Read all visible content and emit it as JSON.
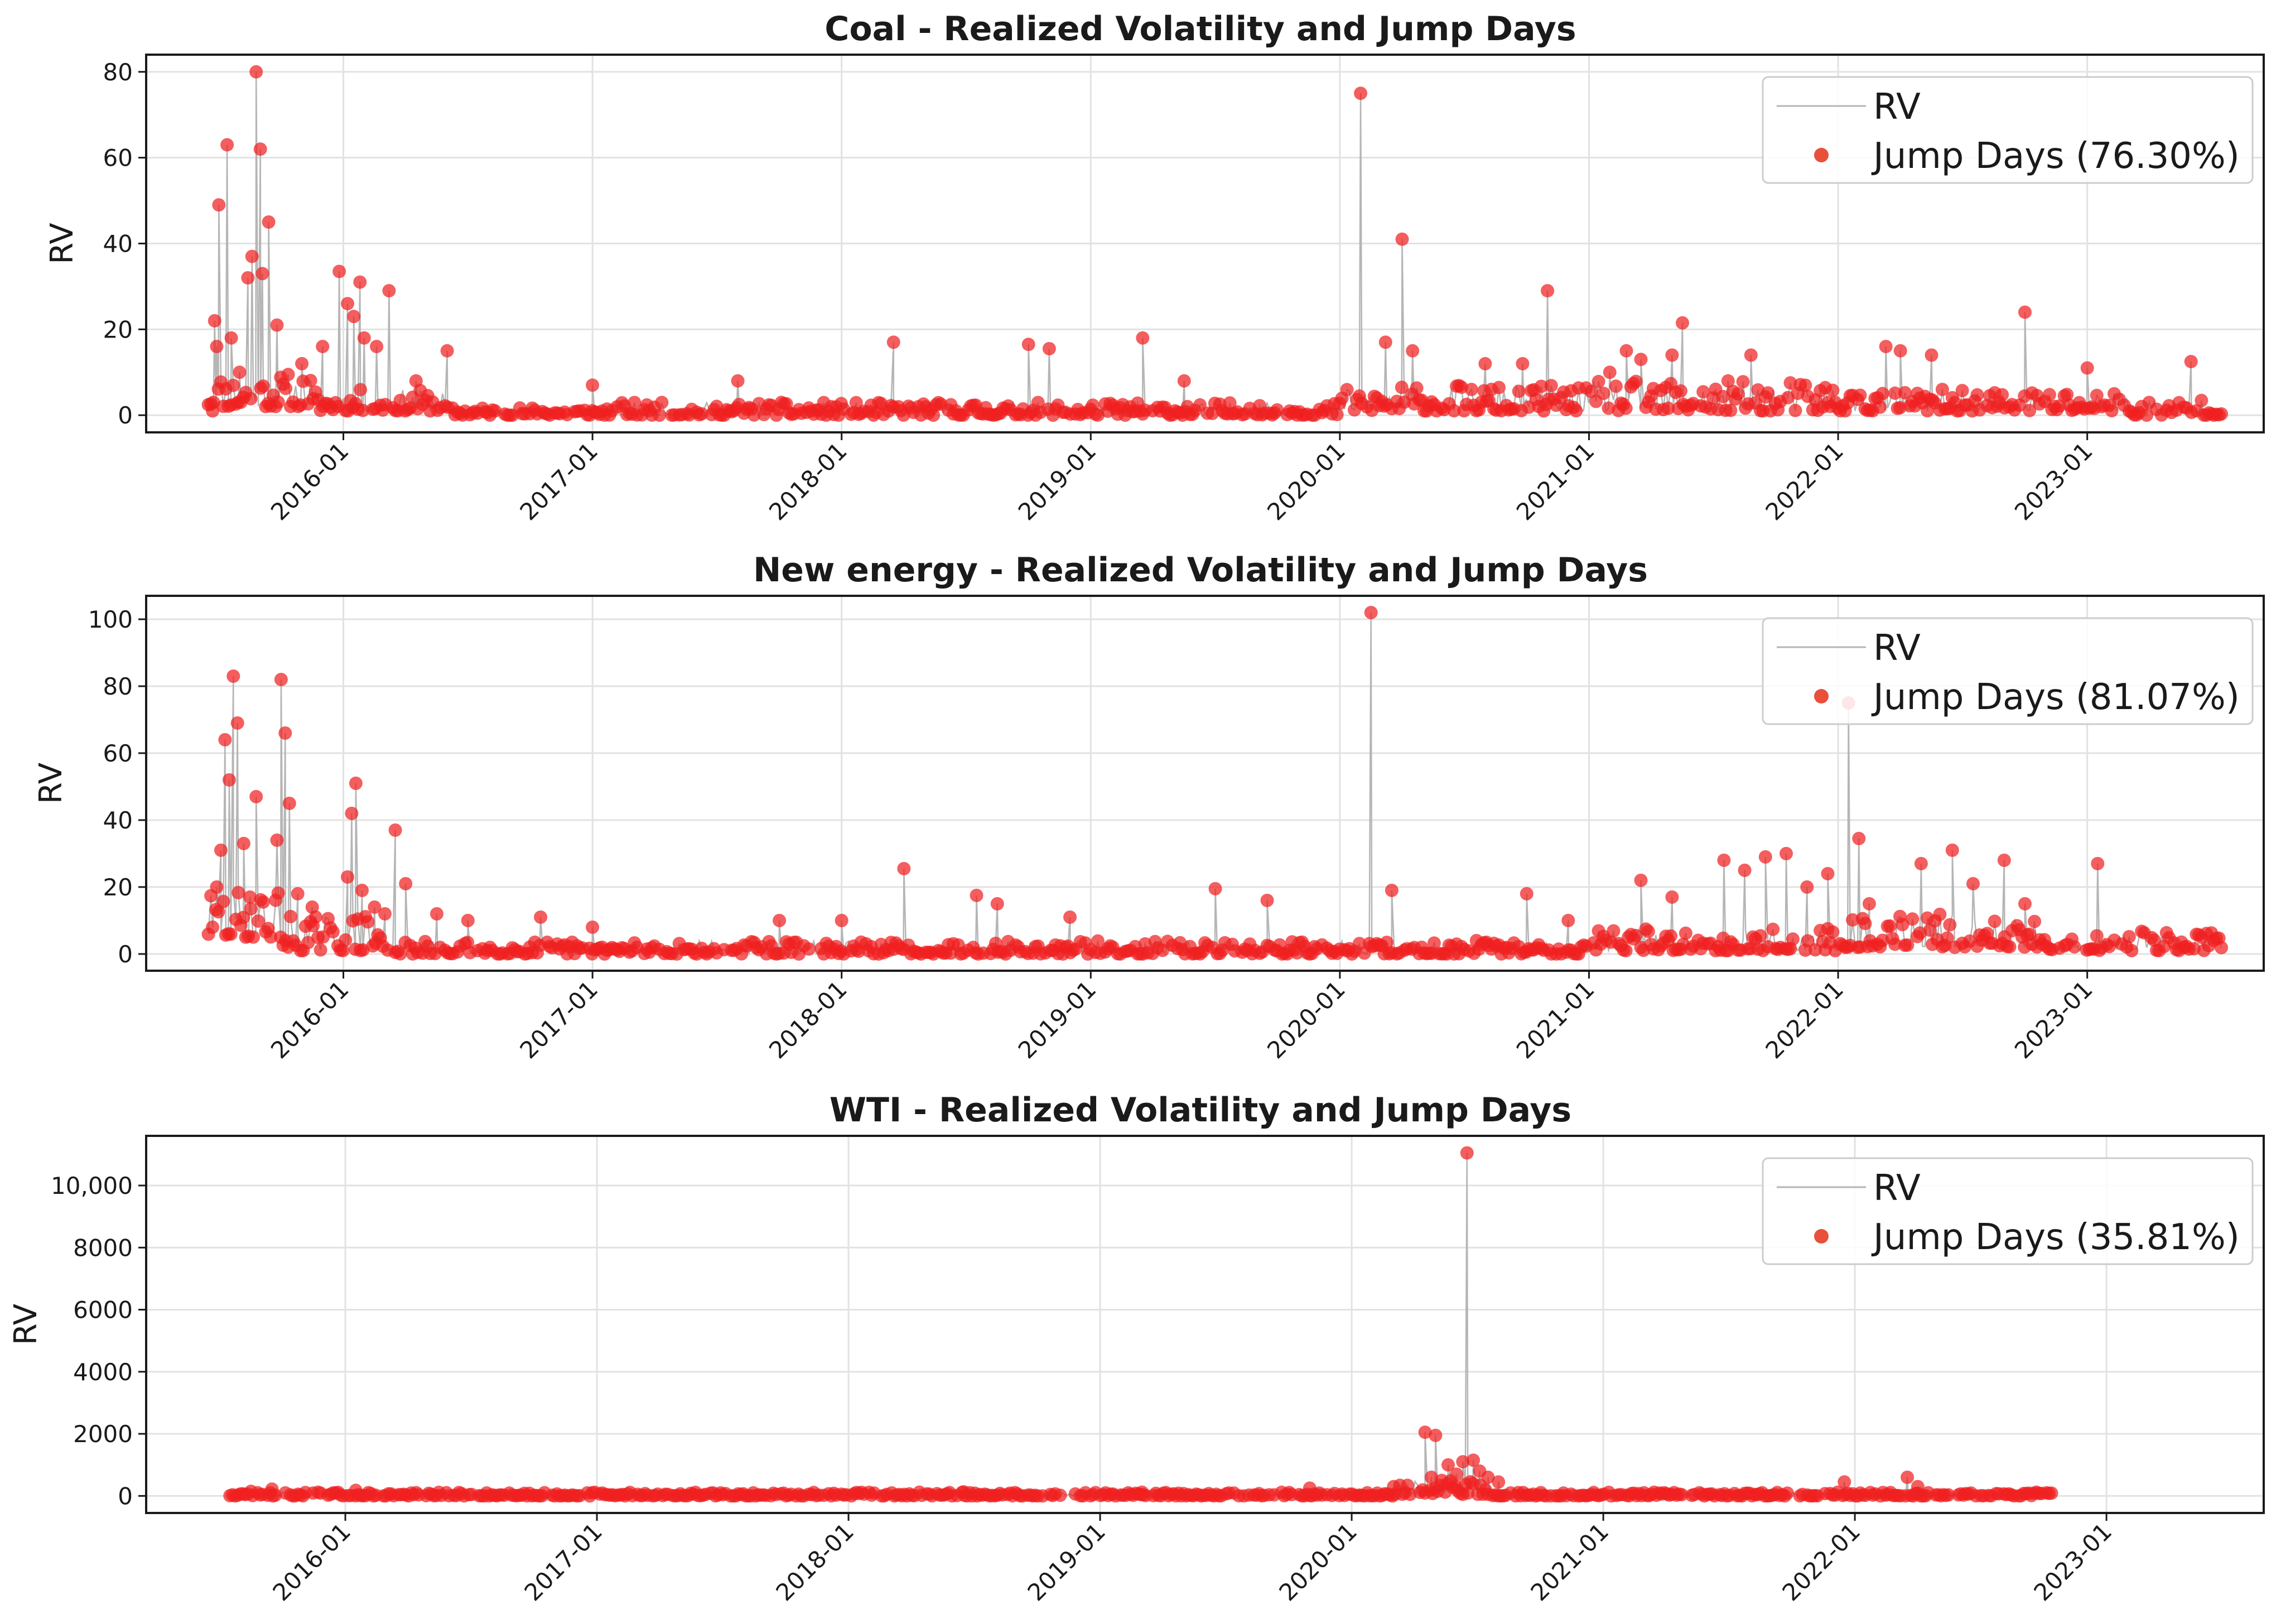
{
  "chart_data": [
    {
      "type": "line+scatter",
      "title": "Coal - Realized Volatility and Jump Days",
      "ylabel": "RV",
      "xlabel": "",
      "ylim": [
        -4,
        84
      ],
      "yticks": [
        0,
        20,
        40,
        60,
        80
      ],
      "ytick_labels": [
        "0",
        "20",
        "40",
        "60",
        "80"
      ],
      "xlim_months": [
        -9.5,
        92.5
      ],
      "xticks": [
        "2016-01",
        "2017-01",
        "2018-01",
        "2019-01",
        "2020-01",
        "2021-01",
        "2022-01",
        "2023-01"
      ],
      "series_time_range_months": [
        -6.5,
        90.5
      ],
      "legend": {
        "position": "upper-right",
        "line_label": "RV",
        "scatter_label": "Jump Days (76.30%)"
      },
      "colors": {
        "line": "#b5b5b5",
        "points": "#f02020",
        "legend_point": "#e8503a"
      },
      "baseline_segments": [
        {
          "from": -6.5,
          "to": -1.5,
          "low": 2,
          "high": 10
        },
        {
          "from": -1.5,
          "to": 5,
          "low": 1,
          "high": 6
        },
        {
          "from": 5,
          "to": 13,
          "low": 0,
          "high": 2
        },
        {
          "from": 13,
          "to": 48,
          "low": 0,
          "high": 3
        },
        {
          "from": 48,
          "to": 60,
          "low": 1,
          "high": 7
        },
        {
          "from": 60,
          "to": 72,
          "low": 1,
          "high": 8
        },
        {
          "from": 72,
          "to": 86,
          "low": 1,
          "high": 6
        },
        {
          "from": 86,
          "to": 90.5,
          "low": 0,
          "high": 4
        }
      ],
      "spikes": [
        {
          "t": -6.3,
          "v": 1
        },
        {
          "t": -6.2,
          "v": 22
        },
        {
          "t": -6.1,
          "v": 16
        },
        {
          "t": -6.0,
          "v": 49
        },
        {
          "t": -5.6,
          "v": 63
        },
        {
          "t": -5.4,
          "v": 18
        },
        {
          "t": -5.0,
          "v": 10
        },
        {
          "t": -4.6,
          "v": 32
        },
        {
          "t": -4.4,
          "v": 37
        },
        {
          "t": -4.2,
          "v": 80
        },
        {
          "t": -4.0,
          "v": 62
        },
        {
          "t": -3.9,
          "v": 33
        },
        {
          "t": -3.6,
          "v": 45
        },
        {
          "t": -3.2,
          "v": 21
        },
        {
          "t": -2.0,
          "v": 12
        },
        {
          "t": -1.0,
          "v": 16
        },
        {
          "t": -0.2,
          "v": 33.5
        },
        {
          "t": 0.2,
          "v": 26
        },
        {
          "t": 0.5,
          "v": 23
        },
        {
          "t": 0.8,
          "v": 31
        },
        {
          "t": 1.0,
          "v": 18
        },
        {
          "t": 1.6,
          "v": 16
        },
        {
          "t": 2.2,
          "v": 29
        },
        {
          "t": 3.5,
          "v": 8
        },
        {
          "t": 5.0,
          "v": 15
        },
        {
          "t": 12.0,
          "v": 7
        },
        {
          "t": 19.0,
          "v": 8
        },
        {
          "t": 26.5,
          "v": 17
        },
        {
          "t": 33.0,
          "v": 16.5
        },
        {
          "t": 34.0,
          "v": 15.5
        },
        {
          "t": 38.5,
          "v": 18
        },
        {
          "t": 40.5,
          "v": 8
        },
        {
          "t": 49.0,
          "v": 75
        },
        {
          "t": 50.2,
          "v": 17
        },
        {
          "t": 51.0,
          "v": 41
        },
        {
          "t": 51.5,
          "v": 15
        },
        {
          "t": 55.0,
          "v": 12
        },
        {
          "t": 56.8,
          "v": 12
        },
        {
          "t": 58.0,
          "v": 29
        },
        {
          "t": 61.0,
          "v": 10
        },
        {
          "t": 61.8,
          "v": 15
        },
        {
          "t": 62.5,
          "v": 13
        },
        {
          "t": 64.0,
          "v": 14
        },
        {
          "t": 64.5,
          "v": 21.5
        },
        {
          "t": 67.8,
          "v": 14
        },
        {
          "t": 74.3,
          "v": 16
        },
        {
          "t": 75.0,
          "v": 15
        },
        {
          "t": 76.5,
          "v": 14
        },
        {
          "t": 81.0,
          "v": 24
        },
        {
          "t": 84.0,
          "v": 11
        },
        {
          "t": 89.0,
          "v": 12.5
        }
      ]
    },
    {
      "type": "line+scatter",
      "title": "New energy - Realized Volatility and Jump Days",
      "ylabel": "RV",
      "xlabel": "",
      "ylim": [
        -5,
        107
      ],
      "yticks": [
        0,
        20,
        40,
        60,
        80,
        100
      ],
      "ytick_labels": [
        "0",
        "20",
        "40",
        "60",
        "80",
        "100"
      ],
      "xlim_months": [
        -9.5,
        92.5
      ],
      "xticks": [
        "2016-01",
        "2017-01",
        "2018-01",
        "2019-01",
        "2020-01",
        "2021-01",
        "2022-01",
        "2023-01"
      ],
      "series_time_range_months": [
        -6.5,
        90.5
      ],
      "legend": {
        "position": "upper-right",
        "line_label": "RV",
        "scatter_label": "Jump Days (81.07%)"
      },
      "colors": {
        "line": "#b5b5b5",
        "points": "#f02020",
        "legend_point": "#e8503a"
      },
      "baseline_segments": [
        {
          "from": -6.5,
          "to": -3,
          "low": 5,
          "high": 20
        },
        {
          "from": -3,
          "to": 2,
          "low": 1,
          "high": 12
        },
        {
          "from": 2,
          "to": 14,
          "low": 0,
          "high": 4
        },
        {
          "from": 14,
          "to": 60,
          "low": 0,
          "high": 4
        },
        {
          "from": 60,
          "to": 72,
          "low": 1,
          "high": 8
        },
        {
          "from": 72,
          "to": 82,
          "low": 2,
          "high": 12
        },
        {
          "from": 82,
          "to": 90.5,
          "low": 1,
          "high": 7
        }
      ],
      "spikes": [
        {
          "t": -6.3,
          "v": 8
        },
        {
          "t": -6.1,
          "v": 20
        },
        {
          "t": -5.9,
          "v": 31
        },
        {
          "t": -5.7,
          "v": 64
        },
        {
          "t": -5.5,
          "v": 52
        },
        {
          "t": -5.3,
          "v": 83
        },
        {
          "t": -5.1,
          "v": 69
        },
        {
          "t": -4.8,
          "v": 33
        },
        {
          "t": -4.5,
          "v": 17
        },
        {
          "t": -4.2,
          "v": 47
        },
        {
          "t": -3.2,
          "v": 34
        },
        {
          "t": -3.0,
          "v": 82
        },
        {
          "t": -2.8,
          "v": 66
        },
        {
          "t": -2.6,
          "v": 45
        },
        {
          "t": -2.2,
          "v": 18
        },
        {
          "t": -1.5,
          "v": 14
        },
        {
          "t": 0.2,
          "v": 23
        },
        {
          "t": 0.4,
          "v": 42
        },
        {
          "t": 0.6,
          "v": 51
        },
        {
          "t": 0.9,
          "v": 19
        },
        {
          "t": 1.5,
          "v": 14
        },
        {
          "t": 2.0,
          "v": 12
        },
        {
          "t": 2.5,
          "v": 37
        },
        {
          "t": 3.0,
          "v": 21
        },
        {
          "t": 4.5,
          "v": 12
        },
        {
          "t": 6.0,
          "v": 10
        },
        {
          "t": 9.5,
          "v": 11
        },
        {
          "t": 12.0,
          "v": 8
        },
        {
          "t": 21.0,
          "v": 10
        },
        {
          "t": 24.0,
          "v": 10
        },
        {
          "t": 27.0,
          "v": 25.5
        },
        {
          "t": 30.5,
          "v": 17.5
        },
        {
          "t": 31.5,
          "v": 15
        },
        {
          "t": 35.0,
          "v": 11
        },
        {
          "t": 42.0,
          "v": 19.5
        },
        {
          "t": 44.5,
          "v": 16
        },
        {
          "t": 49.5,
          "v": 102
        },
        {
          "t": 50.5,
          "v": 19
        },
        {
          "t": 57.0,
          "v": 18
        },
        {
          "t": 59.0,
          "v": 10
        },
        {
          "t": 62.5,
          "v": 22
        },
        {
          "t": 64.0,
          "v": 17
        },
        {
          "t": 66.5,
          "v": 28
        },
        {
          "t": 67.5,
          "v": 25
        },
        {
          "t": 68.5,
          "v": 29
        },
        {
          "t": 69.5,
          "v": 30
        },
        {
          "t": 70.5,
          "v": 20
        },
        {
          "t": 71.5,
          "v": 24
        },
        {
          "t": 72.5,
          "v": 75
        },
        {
          "t": 73.0,
          "v": 34.5
        },
        {
          "t": 73.5,
          "v": 15
        },
        {
          "t": 76.0,
          "v": 27
        },
        {
          "t": 77.5,
          "v": 31
        },
        {
          "t": 78.5,
          "v": 21
        },
        {
          "t": 80.0,
          "v": 28
        },
        {
          "t": 81.0,
          "v": 15
        },
        {
          "t": 84.5,
          "v": 27
        },
        {
          "t": 89.5,
          "v": 5
        }
      ]
    },
    {
      "type": "line+scatter",
      "title": "WTI - Realized Volatility and Jump Days",
      "ylabel": "RV",
      "xlabel": "",
      "ylim": [
        -550,
        11600
      ],
      "yticks": [
        0,
        2000,
        4000,
        6000,
        8000,
        10000
      ],
      "ytick_labels": [
        "0",
        "2000",
        "4000",
        "6000",
        "8000",
        "10,000"
      ],
      "xlim_months": [
        -9.5,
        91.5
      ],
      "xticks": [
        "2016-01",
        "2017-01",
        "2018-01",
        "2019-01",
        "2020-01",
        "2021-01",
        "2022-01",
        "2023-01"
      ],
      "series_time_range_months": [
        -5.5,
        81.5
      ],
      "legend": {
        "position": "upper-right",
        "line_label": "RV",
        "scatter_label": "Jump Days (35.81%)"
      },
      "colors": {
        "line": "#b5b5b5",
        "points": "#f02020",
        "legend_point": "#e8503a"
      },
      "baseline_segments": [
        {
          "from": -5.5,
          "to": 50,
          "low": 0,
          "high": 120
        },
        {
          "from": 50,
          "to": 54.5,
          "low": 50,
          "high": 500
        },
        {
          "from": 54.5,
          "to": 81.5,
          "low": 0,
          "high": 120
        }
      ],
      "spikes": [
        {
          "t": -4.5,
          "v": 150
        },
        {
          "t": -3.5,
          "v": 220
        },
        {
          "t": 0.5,
          "v": 180
        },
        {
          "t": 29.5,
          "v": 130
        },
        {
          "t": 38.0,
          "v": 120
        },
        {
          "t": 46.0,
          "v": 250
        },
        {
          "t": 50.0,
          "v": 300
        },
        {
          "t": 51.5,
          "v": 2050
        },
        {
          "t": 51.8,
          "v": 600
        },
        {
          "t": 52.0,
          "v": 1950
        },
        {
          "t": 52.3,
          "v": 500
        },
        {
          "t": 52.6,
          "v": 1000
        },
        {
          "t": 53.0,
          "v": 700
        },
        {
          "t": 53.3,
          "v": 1100
        },
        {
          "t": 53.5,
          "v": 11050
        },
        {
          "t": 53.8,
          "v": 1150
        },
        {
          "t": 54.1,
          "v": 800
        },
        {
          "t": 54.5,
          "v": 600
        },
        {
          "t": 55.0,
          "v": 450
        },
        {
          "t": 71.5,
          "v": 450
        },
        {
          "t": 74.5,
          "v": 600
        },
        {
          "t": 75.0,
          "v": 300
        }
      ]
    }
  ]
}
